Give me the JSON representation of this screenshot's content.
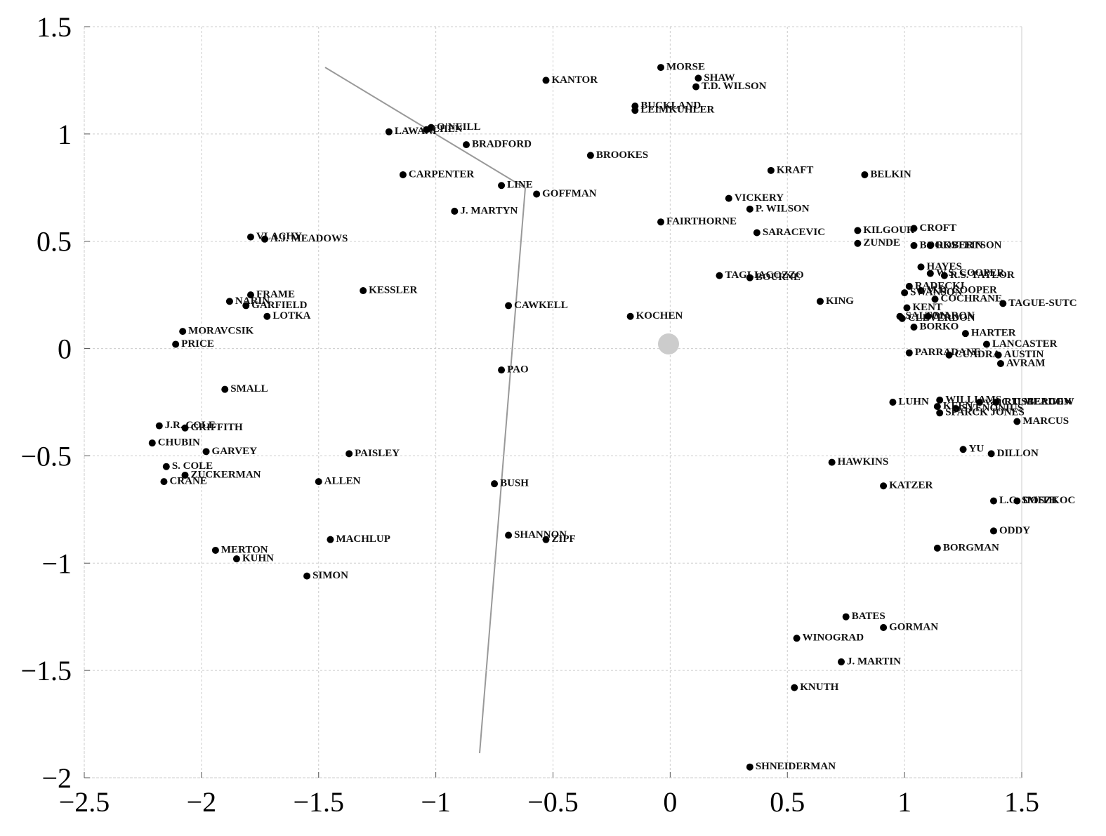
{
  "chart_data": {
    "type": "scatter",
    "labels": [
      "KANTOR",
      "MORSE",
      "SHAW",
      "T.D. WILSON",
      "BUCKLAND",
      "LEIMKUHLER",
      "LAWANI",
      "O'NEILL",
      "CHEN",
      "BRADFORD",
      "BROOKES",
      "CARPENTER",
      "KRAFT",
      "BELKIN",
      "LINE",
      "GOFFMAN",
      "J. MARTYN",
      "VICKERY",
      "P. WILSON",
      "FAIRTHORNE",
      "SARACEVIC",
      "KILGOUR",
      "CROFT",
      "ZUNDE",
      "BOOKSTEIN",
      "ROBERTSON",
      "HAYES",
      "VLACHY",
      "A.J. MEADOWS",
      "W.S. COOPER",
      "R.S. TAYLOR",
      "TAGLIACOZZO",
      "BOURNE",
      "KESSLER",
      "RADECKI",
      "M.D. COOPER",
      "NARIN",
      "FRAME",
      "GARFIELD",
      "LOTKA",
      "CAWKELL",
      "KING",
      "SWANSON",
      "COCHRANE",
      "TAGUE-SUTC",
      "KENT",
      "SALTON",
      "CLEVERDON",
      "MARON",
      "KOCHEN",
      "MORAVCSIK",
      "BORKO",
      "HARTER",
      "PRICE",
      "LANCASTER",
      "PARRADANE",
      "CUADRA",
      "AUSTIN",
      "AVRAM",
      "PAO",
      "SMALL",
      "WILLIAMS",
      "van RIJSBERGEN",
      "C.T. MEADOW",
      "LUHN",
      "KEEN",
      "SVENONIUS",
      "SPARCK JONES",
      "J.R. COLE",
      "GRIFFITH",
      "MARCUS",
      "CHUBIN",
      "GARVEY",
      "PAISLEY",
      "YU",
      "DILLON",
      "S. COLE",
      "HAWKINS",
      "ZUCKERMAN",
      "CRANE",
      "ALLEN",
      "BUSH",
      "KATZER",
      "L.C. SMITH",
      "DOSZKOC",
      "SHANNON",
      "ZIPF",
      "MACHLUP",
      "ODDY",
      "MERTON",
      "BORGMAN",
      "KUHN",
      "SIMON",
      "BATES",
      "GORMAN",
      "WINOGRAD",
      "J. MARTIN",
      "KNUTH",
      "SHNEIDERMAN"
    ],
    "x": [
      -0.53,
      -0.04,
      0.12,
      0.11,
      -0.15,
      -0.15,
      -1.2,
      -1.02,
      -1.04,
      -0.87,
      -0.34,
      -1.14,
      0.43,
      0.83,
      -0.72,
      -0.57,
      -0.92,
      0.25,
      0.34,
      -0.04,
      0.37,
      0.8,
      1.04,
      0.8,
      1.04,
      1.11,
      1.07,
      -1.79,
      -1.73,
      1.11,
      1.17,
      0.21,
      0.34,
      -1.31,
      1.02,
      1.07,
      -1.88,
      -1.79,
      -1.81,
      -1.72,
      -0.69,
      0.64,
      1.0,
      1.13,
      1.42,
      1.01,
      0.98,
      0.99,
      1.1,
      -0.17,
      -2.08,
      1.04,
      1.26,
      -2.11,
      1.35,
      1.02,
      1.19,
      1.4,
      1.41,
      -0.72,
      -1.9,
      1.15,
      1.32,
      1.39,
      0.95,
      1.14,
      1.22,
      1.15,
      -2.18,
      -2.07,
      1.48,
      -2.21,
      -1.98,
      -1.37,
      1.25,
      1.37,
      -2.15,
      0.69,
      -2.07,
      -2.16,
      -1.5,
      -0.75,
      0.91,
      1.38,
      1.48,
      -0.69,
      -0.53,
      -1.45,
      1.38,
      -1.94,
      1.14,
      -1.85,
      -1.55,
      0.75,
      0.91,
      0.54,
      0.73,
      0.53,
      0.34
    ],
    "values": [
      1.25,
      1.31,
      1.26,
      1.22,
      1.13,
      1.11,
      1.01,
      1.03,
      1.02,
      0.95,
      0.9,
      0.81,
      0.83,
      0.81,
      0.76,
      0.72,
      0.64,
      0.7,
      0.65,
      0.59,
      0.54,
      0.55,
      0.56,
      0.49,
      0.48,
      0.48,
      0.38,
      0.52,
      0.51,
      0.35,
      0.34,
      0.34,
      0.33,
      0.27,
      0.29,
      0.27,
      0.22,
      0.25,
      0.2,
      0.15,
      0.2,
      0.22,
      0.26,
      0.23,
      0.21,
      0.19,
      0.15,
      0.14,
      0.15,
      0.15,
      0.08,
      0.1,
      0.07,
      0.02,
      0.02,
      -0.02,
      -0.03,
      -0.03,
      -0.07,
      -0.1,
      -0.19,
      -0.24,
      -0.25,
      -0.25,
      -0.25,
      -0.27,
      -0.28,
      -0.3,
      -0.36,
      -0.37,
      -0.34,
      -0.44,
      -0.48,
      -0.49,
      -0.47,
      -0.49,
      -0.55,
      -0.53,
      -0.59,
      -0.62,
      -0.62,
      -0.63,
      -0.64,
      -0.71,
      -0.71,
      -0.87,
      -0.89,
      -0.89,
      -0.85,
      -0.94,
      -0.93,
      -0.98,
      -1.06,
      -1.25,
      -1.3,
      -1.35,
      -1.46,
      -1.58,
      -1.95
    ],
    "xlim": [
      -2.5,
      1.5
    ],
    "ylim": [
      -2,
      1.5
    ],
    "xticks": [
      {
        "value": -2.5,
        "label": "−2.5"
      },
      {
        "value": -2,
        "label": "−2"
      },
      {
        "value": -1.5,
        "label": "−1.5"
      },
      {
        "value": -1,
        "label": "−1"
      },
      {
        "value": -0.5,
        "label": "−0.5"
      },
      0,
      0.5,
      1,
      1.5
    ],
    "yticks": [
      {
        "value": -2,
        "label": "−2"
      },
      {
        "value": -1.5,
        "label": "−1.5"
      },
      {
        "value": -1,
        "label": "−1"
      },
      {
        "value": -0.5,
        "label": "−0.5"
      },
      0,
      0.5,
      1,
      1.5
    ],
    "grid": true,
    "color": "#000000"
  }
}
